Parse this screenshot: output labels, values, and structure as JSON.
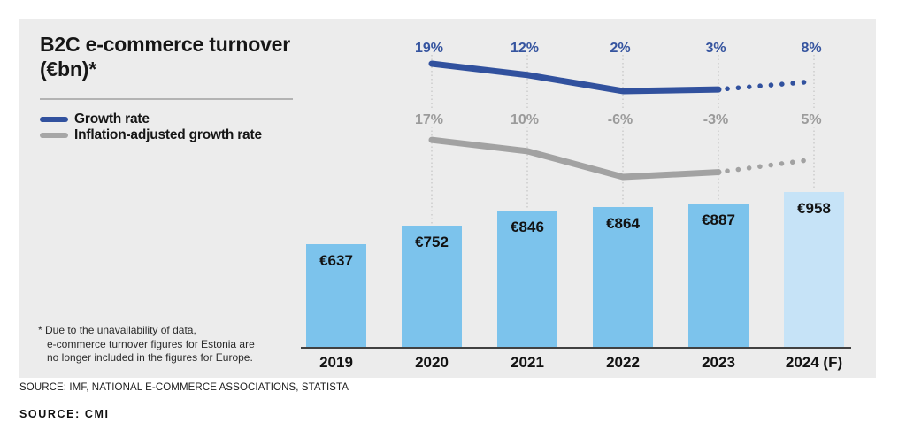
{
  "title": {
    "line1": "B2C e-commerce turnover",
    "line2": "(€bn)*",
    "full": "B2C e-commerce turnover (€bn)*"
  },
  "legend": {
    "items": [
      {
        "label": "Growth rate",
        "color": "#31519e"
      },
      {
        "label": "Inflation-adjusted growth rate",
        "color": "#a6a6a6"
      }
    ]
  },
  "footnote": {
    "lines": [
      "* Due to the unavailability of data,",
      "e-commerce turnover figures for Estonia are",
      "no longer included in the figures for Europe."
    ]
  },
  "sources": {
    "primary": "SOURCE: IMF, NATIONAL E-COMMERCE ASSOCIATIONS, STATISTA",
    "secondary": "SOURCE: CMI"
  },
  "colors": {
    "panel_bg": "#ececec",
    "bar": "#7cc3ec",
    "bar_forecast": "#c6e3f7",
    "growth_line": "#31519e",
    "growth_label": "#35549f",
    "inflation_line": "#a2a2a2",
    "inflation_label": "#9b9b9b",
    "axis": "#414141",
    "gridline": "#c4c4c4",
    "text_dark": "#121212"
  },
  "chart_data": {
    "type": "bar",
    "subtype": "combo-bar-with-two-percentage-lines",
    "title": "B2C e-commerce turnover (€bn)*",
    "categories": [
      "2019",
      "2020",
      "2021",
      "2022",
      "2023",
      "2024 (F)"
    ],
    "bars": {
      "name": "B2C e-commerce turnover",
      "unit": "€bn",
      "values": [
        637,
        752,
        846,
        864,
        887,
        958
      ],
      "labels": [
        "€637",
        "€752",
        "€846",
        "€864",
        "€887",
        "€958"
      ],
      "forecast_category": "2024 (F)"
    },
    "series": [
      {
        "name": "Growth rate",
        "unit": "%",
        "values": [
          null,
          19,
          12,
          2,
          3,
          8
        ],
        "labels": [
          "19%",
          "12%",
          "2%",
          "3%",
          "8%"
        ],
        "style": "solid_then_dotted",
        "dotted_segment": [
          "2023",
          "2024 (F)"
        ]
      },
      {
        "name": "Inflation-adjusted growth rate",
        "unit": "%",
        "values": [
          null,
          17,
          10,
          -6,
          -3,
          5
        ],
        "labels": [
          "17%",
          "10%",
          "-6%",
          "-3%",
          "5%"
        ],
        "style": "solid_then_dotted",
        "dotted_segment": [
          "2023",
          "2024 (F)"
        ]
      }
    ],
    "legend_position": "top-left",
    "grid": "vertical-dotted-per-category",
    "value_labels": "inside-bar-top",
    "xlabel": "",
    "ylabel": ""
  }
}
